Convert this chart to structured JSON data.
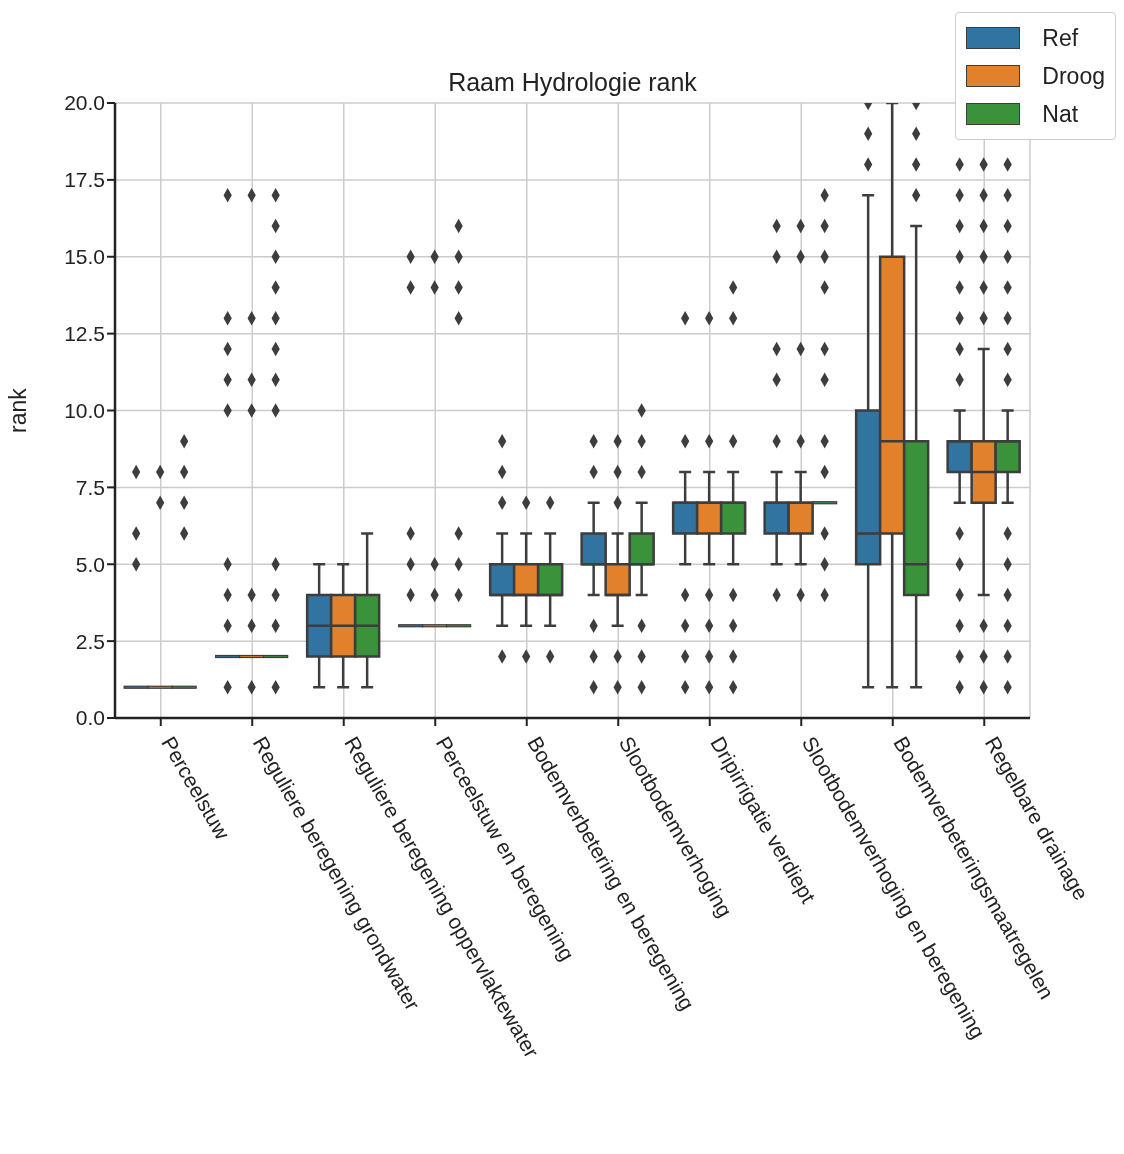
{
  "chart_data": {
    "type": "box",
    "title": "Raam Hydrologie rank",
    "ylabel": "rank",
    "categories": [
      "Perceelstuw",
      "Reguliere beregening grondwater",
      "Reguliere beregening oppervlaktewater",
      "Perceelstuw en beregening",
      "Bodemverbetering en beregening",
      "Slootbodemverhoging",
      "Dripirrigatie verdiept",
      "Slootbodemverhoging en beregening",
      "Bodemverbeteringsmaatregelen",
      "Regelbare drainage"
    ],
    "series": [
      {
        "name": "Ref",
        "color": "#3274a1",
        "boxes": [
          {
            "low": 1,
            "q1": 1,
            "median": 1,
            "q3": 1,
            "high": 1,
            "outliers": [
              8,
              6,
              5
            ]
          },
          {
            "low": 2,
            "q1": 2,
            "median": 2,
            "q3": 2,
            "high": 2,
            "outliers": [
              17,
              13,
              12,
              11,
              10,
              5,
              4,
              3,
              1
            ]
          },
          {
            "low": 1,
            "q1": 2,
            "median": 3,
            "q3": 4,
            "high": 5
          },
          {
            "low": 3,
            "q1": 3,
            "median": 3,
            "q3": 3,
            "high": 3,
            "outliers": [
              15,
              14,
              6,
              5,
              4
            ]
          },
          {
            "low": 3,
            "q1": 4,
            "median": 4,
            "q3": 5,
            "high": 6,
            "outliers": [
              9,
              8,
              7,
              2
            ]
          },
          {
            "low": 4,
            "q1": 5,
            "median": 5,
            "q3": 6,
            "high": 7,
            "outliers": [
              9,
              8,
              3,
              2,
              1
            ]
          },
          {
            "low": 5,
            "q1": 6,
            "median": 7,
            "q3": 7,
            "high": 8,
            "outliers": [
              13,
              9,
              4,
              3,
              2,
              1
            ]
          },
          {
            "low": 5,
            "q1": 6,
            "median": 7,
            "q3": 7,
            "high": 8,
            "outliers": [
              16,
              15,
              12,
              11,
              9,
              4
            ]
          },
          {
            "low": 1,
            "q1": 5,
            "median": 6,
            "q3": 10,
            "high": 17,
            "outliers": [
              20,
              19,
              18
            ]
          },
          {
            "low": 7,
            "q1": 8,
            "median": 9,
            "q3": 9,
            "high": 10,
            "outliers": [
              18,
              17,
              16,
              15,
              14,
              13,
              12,
              11,
              6,
              5,
              4,
              3,
              2,
              1
            ]
          }
        ]
      },
      {
        "name": "Droog",
        "color": "#e1812c",
        "boxes": [
          {
            "low": 1,
            "q1": 1,
            "median": 1,
            "q3": 1,
            "high": 1,
            "outliers": [
              8,
              7
            ]
          },
          {
            "low": 2,
            "q1": 2,
            "median": 2,
            "q3": 2,
            "high": 2,
            "outliers": [
              17,
              13,
              11,
              10,
              4,
              3,
              1
            ]
          },
          {
            "low": 1,
            "q1": 2,
            "median": 3,
            "q3": 4,
            "high": 5
          },
          {
            "low": 3,
            "q1": 3,
            "median": 3,
            "q3": 3,
            "high": 3,
            "outliers": [
              15,
              14,
              5,
              4
            ]
          },
          {
            "low": 3,
            "q1": 4,
            "median": 4,
            "q3": 5,
            "high": 6,
            "outliers": [
              7,
              2
            ]
          },
          {
            "low": 3,
            "q1": 4,
            "median": 4,
            "q3": 5,
            "high": 6,
            "outliers": [
              9,
              8,
              7,
              2,
              1
            ]
          },
          {
            "low": 5,
            "q1": 6,
            "median": 7,
            "q3": 7,
            "high": 8,
            "outliers": [
              13,
              9,
              4,
              3,
              2,
              1
            ]
          },
          {
            "low": 5,
            "q1": 6,
            "median": 7,
            "q3": 7,
            "high": 8,
            "outliers": [
              16,
              15,
              12,
              9,
              4
            ]
          },
          {
            "low": 1,
            "q1": 6,
            "median": 9,
            "q3": 15,
            "high": 20
          },
          {
            "low": 4,
            "q1": 7,
            "median": 8,
            "q3": 9,
            "high": 12,
            "outliers": [
              18,
              17,
              16,
              15,
              14,
              13,
              3,
              2,
              1
            ]
          }
        ]
      },
      {
        "name": "Nat",
        "color": "#3a923a",
        "boxes": [
          {
            "low": 1,
            "q1": 1,
            "median": 1,
            "q3": 1,
            "high": 1,
            "outliers": [
              9,
              8,
              7,
              6
            ]
          },
          {
            "low": 2,
            "q1": 2,
            "median": 2,
            "q3": 2,
            "high": 2,
            "outliers": [
              17,
              16,
              15,
              14,
              13,
              12,
              11,
              10,
              5,
              4,
              3,
              1
            ]
          },
          {
            "low": 1,
            "q1": 2,
            "median": 3,
            "q3": 4,
            "high": 6
          },
          {
            "low": 3,
            "q1": 3,
            "median": 3,
            "q3": 3,
            "high": 3,
            "outliers": [
              16,
              15,
              14,
              13,
              6,
              5,
              4
            ]
          },
          {
            "low": 3,
            "q1": 4,
            "median": 4,
            "q3": 5,
            "high": 6,
            "outliers": [
              7,
              2
            ]
          },
          {
            "low": 4,
            "q1": 5,
            "median": 5,
            "q3": 6,
            "high": 7,
            "outliers": [
              10,
              9,
              8,
              3,
              2,
              1
            ]
          },
          {
            "low": 5,
            "q1": 6,
            "median": 7,
            "q3": 7,
            "high": 8,
            "outliers": [
              14,
              13,
              9,
              4,
              3,
              2,
              1
            ]
          },
          {
            "low": 7,
            "q1": 7,
            "median": 7,
            "q3": 7,
            "high": 7,
            "outliers": [
              17,
              16,
              15,
              14,
              12,
              11,
              9,
              8,
              6,
              5,
              4
            ]
          },
          {
            "low": 1,
            "q1": 4,
            "median": 5,
            "q3": 9,
            "high": 16,
            "outliers": [
              20,
              19,
              18,
              17
            ]
          },
          {
            "low": 7,
            "q1": 8,
            "median": 9,
            "q3": 9,
            "high": 10,
            "outliers": [
              18,
              17,
              16,
              15,
              14,
              13,
              12,
              11,
              6,
              5,
              4,
              3,
              2,
              1
            ]
          }
        ]
      }
    ],
    "ylim": [
      0,
      20
    ],
    "yticks": [
      {
        "value": 0,
        "label": "0.0"
      },
      {
        "value": 2.5,
        "label": "2.5"
      },
      {
        "value": 5,
        "label": "5.0"
      },
      {
        "value": 7.5,
        "label": "7.5"
      },
      {
        "value": 10,
        "label": "10.0"
      },
      {
        "value": 12.5,
        "label": "12.5"
      },
      {
        "value": 15,
        "label": "15.0"
      },
      {
        "value": 17.5,
        "label": "17.5"
      },
      {
        "value": 20,
        "label": "20.0"
      }
    ],
    "grid": true,
    "legend": "top right",
    "marker": "diamond"
  }
}
